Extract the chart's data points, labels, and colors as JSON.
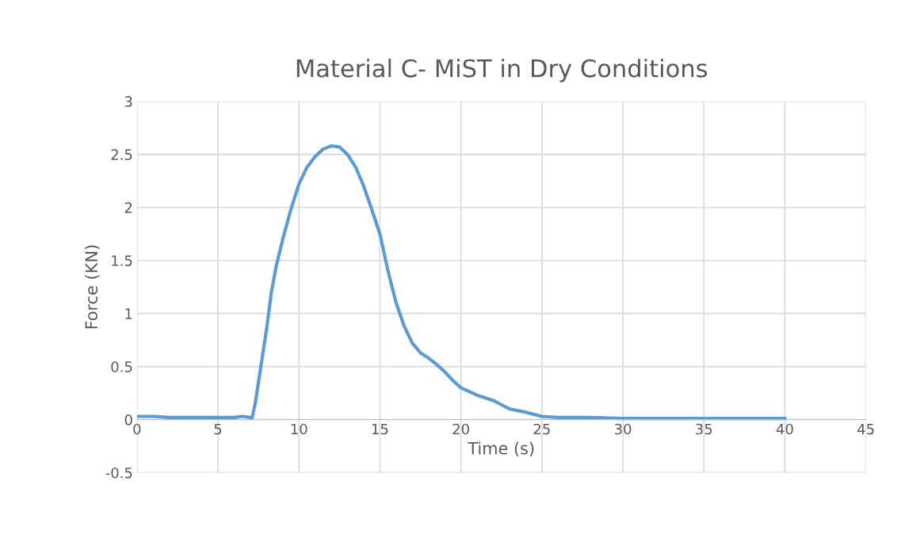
{
  "chart_data": {
    "type": "line",
    "title": "Material C- MiST in Dry Conditions",
    "xlabel": "Time (s)",
    "ylabel": "Force (KN)",
    "series": [
      {
        "color": "#5b9bd5",
        "x": [
          0,
          1,
          2,
          3,
          4,
          5,
          6,
          6.5,
          7,
          7.1,
          7.3,
          7.5,
          7.8,
          8,
          8.3,
          8.6,
          9,
          9.5,
          10,
          10.5,
          11,
          11.5,
          12,
          12.5,
          13,
          13.5,
          14,
          14.5,
          15,
          15.5,
          16,
          16.5,
          17,
          17.5,
          18,
          18.5,
          19,
          19.5,
          20,
          21,
          22,
          22.5,
          23,
          24,
          25,
          26,
          28,
          30,
          32,
          34,
          36,
          38,
          40
        ],
        "values": [
          0.03,
          0.03,
          0.02,
          0.02,
          0.02,
          0.02,
          0.02,
          0.03,
          0.02,
          0.01,
          0.15,
          0.35,
          0.65,
          0.85,
          1.2,
          1.45,
          1.7,
          1.98,
          2.22,
          2.38,
          2.48,
          2.55,
          2.58,
          2.57,
          2.5,
          2.38,
          2.2,
          1.98,
          1.75,
          1.4,
          1.1,
          0.88,
          0.72,
          0.63,
          0.58,
          0.52,
          0.45,
          0.37,
          0.3,
          0.23,
          0.18,
          0.14,
          0.1,
          0.07,
          0.03,
          0.02,
          0.02,
          0.01,
          0.01,
          0.01,
          0.01,
          0.01,
          0.01
        ]
      }
    ],
    "xlim": [
      0,
      45
    ],
    "xticks": [
      0,
      5,
      10,
      15,
      20,
      25,
      30,
      35,
      40,
      45
    ],
    "ylim": [
      -0.5,
      3
    ],
    "yticks": [
      -0.5,
      0,
      0.5,
      1,
      1.5,
      2,
      2.5,
      3
    ],
    "grid": true,
    "legend": false,
    "marker": "none",
    "line_style": "solid"
  }
}
